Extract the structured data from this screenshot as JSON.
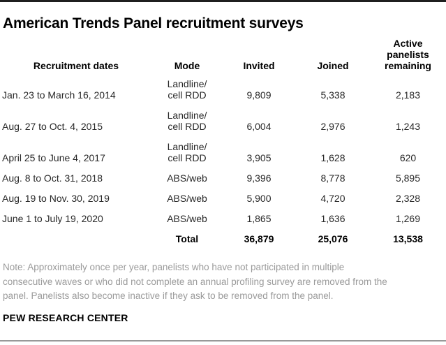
{
  "title": "American Trends Panel recruitment surveys",
  "table": {
    "headers": {
      "dates": "Recruitment dates",
      "mode": "Mode",
      "invited": "Invited",
      "joined": "Joined",
      "active": "Active panelists remaining"
    },
    "rows": [
      {
        "dates": "Jan. 23 to March 16, 2014",
        "mode": "Landline/\ncell RDD",
        "invited": "9,809",
        "joined": "5,338",
        "active": "2,183"
      },
      {
        "dates": "Aug. 27 to Oct. 4, 2015",
        "mode": "Landline/\ncell RDD",
        "invited": "6,004",
        "joined": "2,976",
        "active": "1,243"
      },
      {
        "dates": "April 25 to June 4, 2017",
        "mode": "Landline/\ncell RDD",
        "invited": "3,905",
        "joined": "1,628",
        "active": "620"
      },
      {
        "dates": "Aug. 8 to Oct. 31, 2018",
        "mode": "ABS/web",
        "invited": "9,396",
        "joined": "8,778",
        "active": "5,895"
      },
      {
        "dates": "Aug. 19 to Nov. 30, 2019",
        "mode": "ABS/web",
        "invited": "5,900",
        "joined": "4,720",
        "active": "2,328"
      },
      {
        "dates": "June 1 to July 19, 2020",
        "mode": "ABS/web",
        "invited": "1,865",
        "joined": "1,636",
        "active": "1,269"
      }
    ],
    "total": {
      "label": "Total",
      "invited": "36,879",
      "joined": "25,076",
      "active": "13,538"
    }
  },
  "note_lines": [
    "Note: Approximately once per year, panelists who have not participated in multiple",
    "consecutive waves or who did not complete an annual profiling survey are removed from the",
    "panel. Panelists also become inactive if they ask to be removed from the panel."
  ],
  "source": "PEW RESEARCH CENTER",
  "colors": {
    "top_rule": "#1f1f1f",
    "bottom_rule": "#999999",
    "title_text": "#000000",
    "body_text": "#282828",
    "note_text": "#9a9a9a"
  },
  "chart_data": {
    "type": "table",
    "title": "American Trends Panel recruitment surveys",
    "columns": [
      "Recruitment dates",
      "Mode",
      "Invited",
      "Joined",
      "Active panelists remaining"
    ],
    "rows": [
      [
        "Jan. 23 to March 16, 2014",
        "Landline/cell RDD",
        9809,
        5338,
        2183
      ],
      [
        "Aug. 27 to Oct. 4, 2015",
        "Landline/cell RDD",
        6004,
        2976,
        1243
      ],
      [
        "April 25 to June 4, 2017",
        "Landline/cell RDD",
        3905,
        1628,
        620
      ],
      [
        "Aug. 8 to Oct. 31, 2018",
        "ABS/web",
        9396,
        8778,
        5895
      ],
      [
        "Aug. 19 to Nov. 30, 2019",
        "ABS/web",
        5900,
        4720,
        2328
      ],
      [
        "June 1 to July 19, 2020",
        "ABS/web",
        1865,
        1636,
        1269
      ],
      [
        "",
        "Total",
        36879,
        25076,
        13538
      ]
    ],
    "note": "Note: Approximately once per year, panelists who have not participated in multiple consecutive waves or who did not complete an annual profiling survey are removed from the panel. Panelists also become inactive if they ask to be removed from the panel.",
    "source": "PEW RESEARCH CENTER"
  }
}
